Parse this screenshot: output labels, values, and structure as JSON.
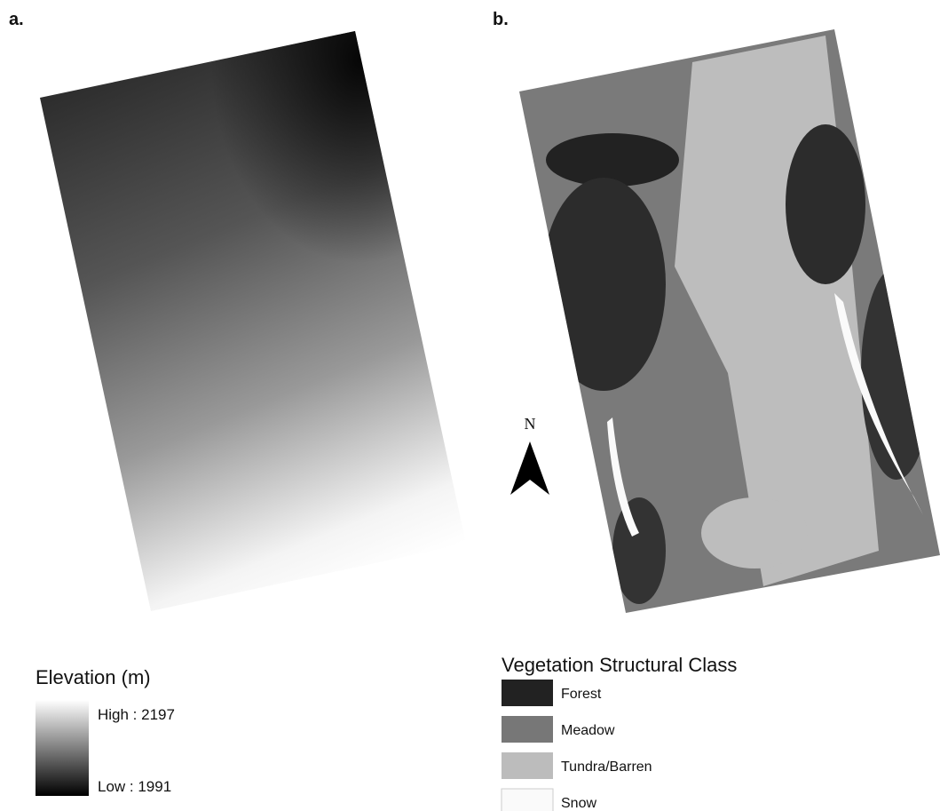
{
  "panels": [
    {
      "label": "a."
    },
    {
      "label": "b."
    }
  ],
  "elevation_legend": {
    "title": "Elevation (m)",
    "high": "High : 2197",
    "low": "Low : 1991"
  },
  "vegetation_legend": {
    "title": "Vegetation Structural Class",
    "items": [
      "Forest",
      "Meadow",
      "Tundra/Barren",
      "Snow"
    ]
  },
  "north_arrow": "N"
}
